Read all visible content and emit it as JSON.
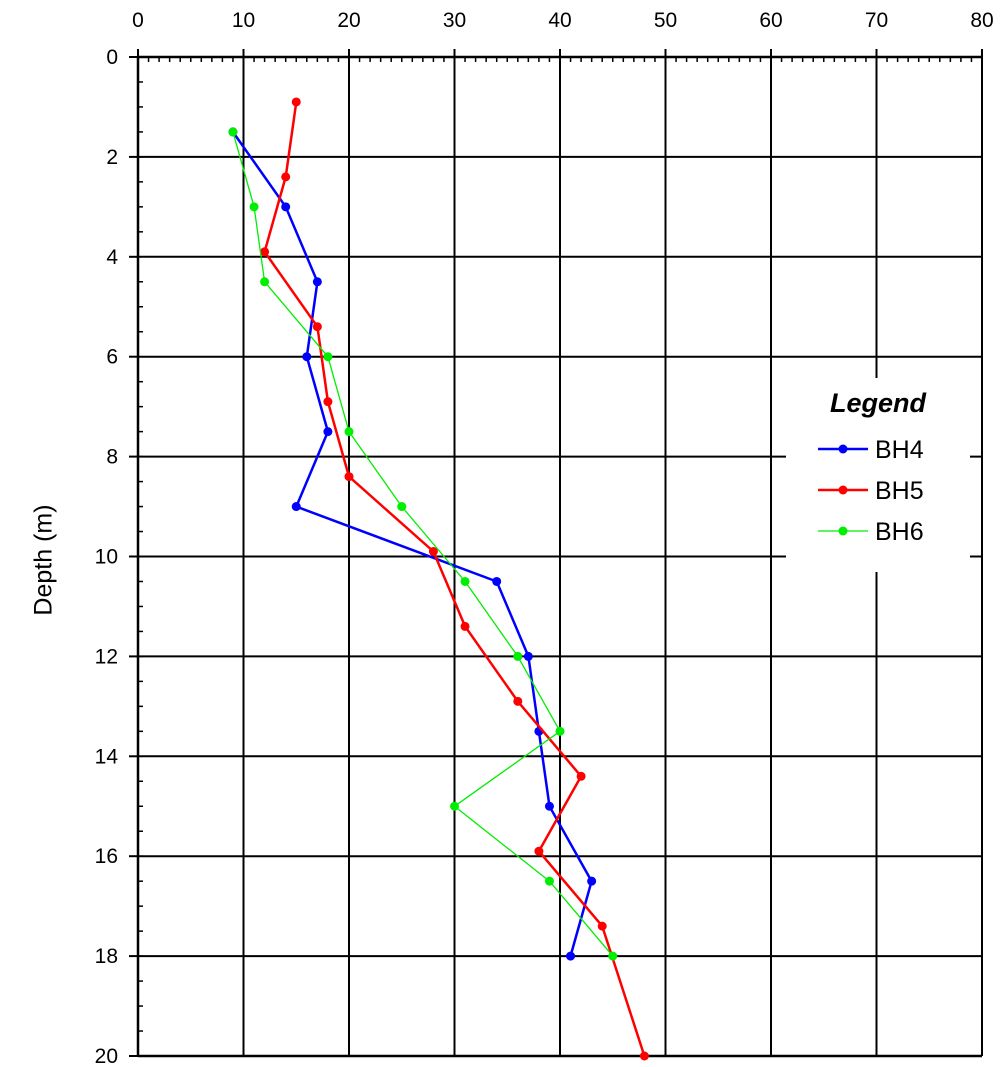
{
  "chart_data": {
    "type": "line",
    "title": "",
    "xlabel": "",
    "ylabel": "Depth (m)",
    "x_ticks": [
      0,
      10,
      20,
      30,
      40,
      50,
      60,
      70,
      80
    ],
    "y_ticks": [
      0,
      2,
      4,
      6,
      8,
      10,
      12,
      14,
      16,
      18,
      20
    ],
    "xlim": [
      0,
      80
    ],
    "ylim": [
      0,
      20
    ],
    "y_inverted": true,
    "x_axis_position": "top",
    "grid": true,
    "legend": {
      "title": "Legend",
      "placement": "right"
    },
    "series": [
      {
        "name": "BH4",
        "color": "#0000ff",
        "points": [
          [
            9,
            1.5
          ],
          [
            14,
            3
          ],
          [
            17,
            4.5
          ],
          [
            16,
            6
          ],
          [
            18,
            7.5
          ],
          [
            15,
            9
          ],
          [
            34,
            10.5
          ],
          [
            37,
            12
          ],
          [
            38,
            13.5
          ],
          [
            39,
            15
          ],
          [
            43,
            16.5
          ],
          [
            41,
            18
          ]
        ]
      },
      {
        "name": "BH5",
        "color": "#ff0000",
        "points": [
          [
            15,
            0.9
          ],
          [
            14,
            2.4
          ],
          [
            12,
            3.9
          ],
          [
            17,
            5.4
          ],
          [
            18,
            6.9
          ],
          [
            20,
            8.4
          ],
          [
            28,
            9.9
          ],
          [
            31,
            11.4
          ],
          [
            36,
            12.9
          ],
          [
            42,
            14.4
          ],
          [
            38,
            15.9
          ],
          [
            44,
            17.4
          ],
          [
            48,
            20
          ]
        ]
      },
      {
        "name": "BH6",
        "color": "#00ee00",
        "points": [
          [
            9,
            1.5
          ],
          [
            11,
            3
          ],
          [
            12,
            4.5
          ],
          [
            18,
            6
          ],
          [
            20,
            7.5
          ],
          [
            25,
            9
          ],
          [
            31,
            10.5
          ],
          [
            36,
            12
          ],
          [
            40,
            13.5
          ],
          [
            30,
            15
          ],
          [
            39,
            16.5
          ],
          [
            45,
            18
          ]
        ]
      }
    ]
  }
}
